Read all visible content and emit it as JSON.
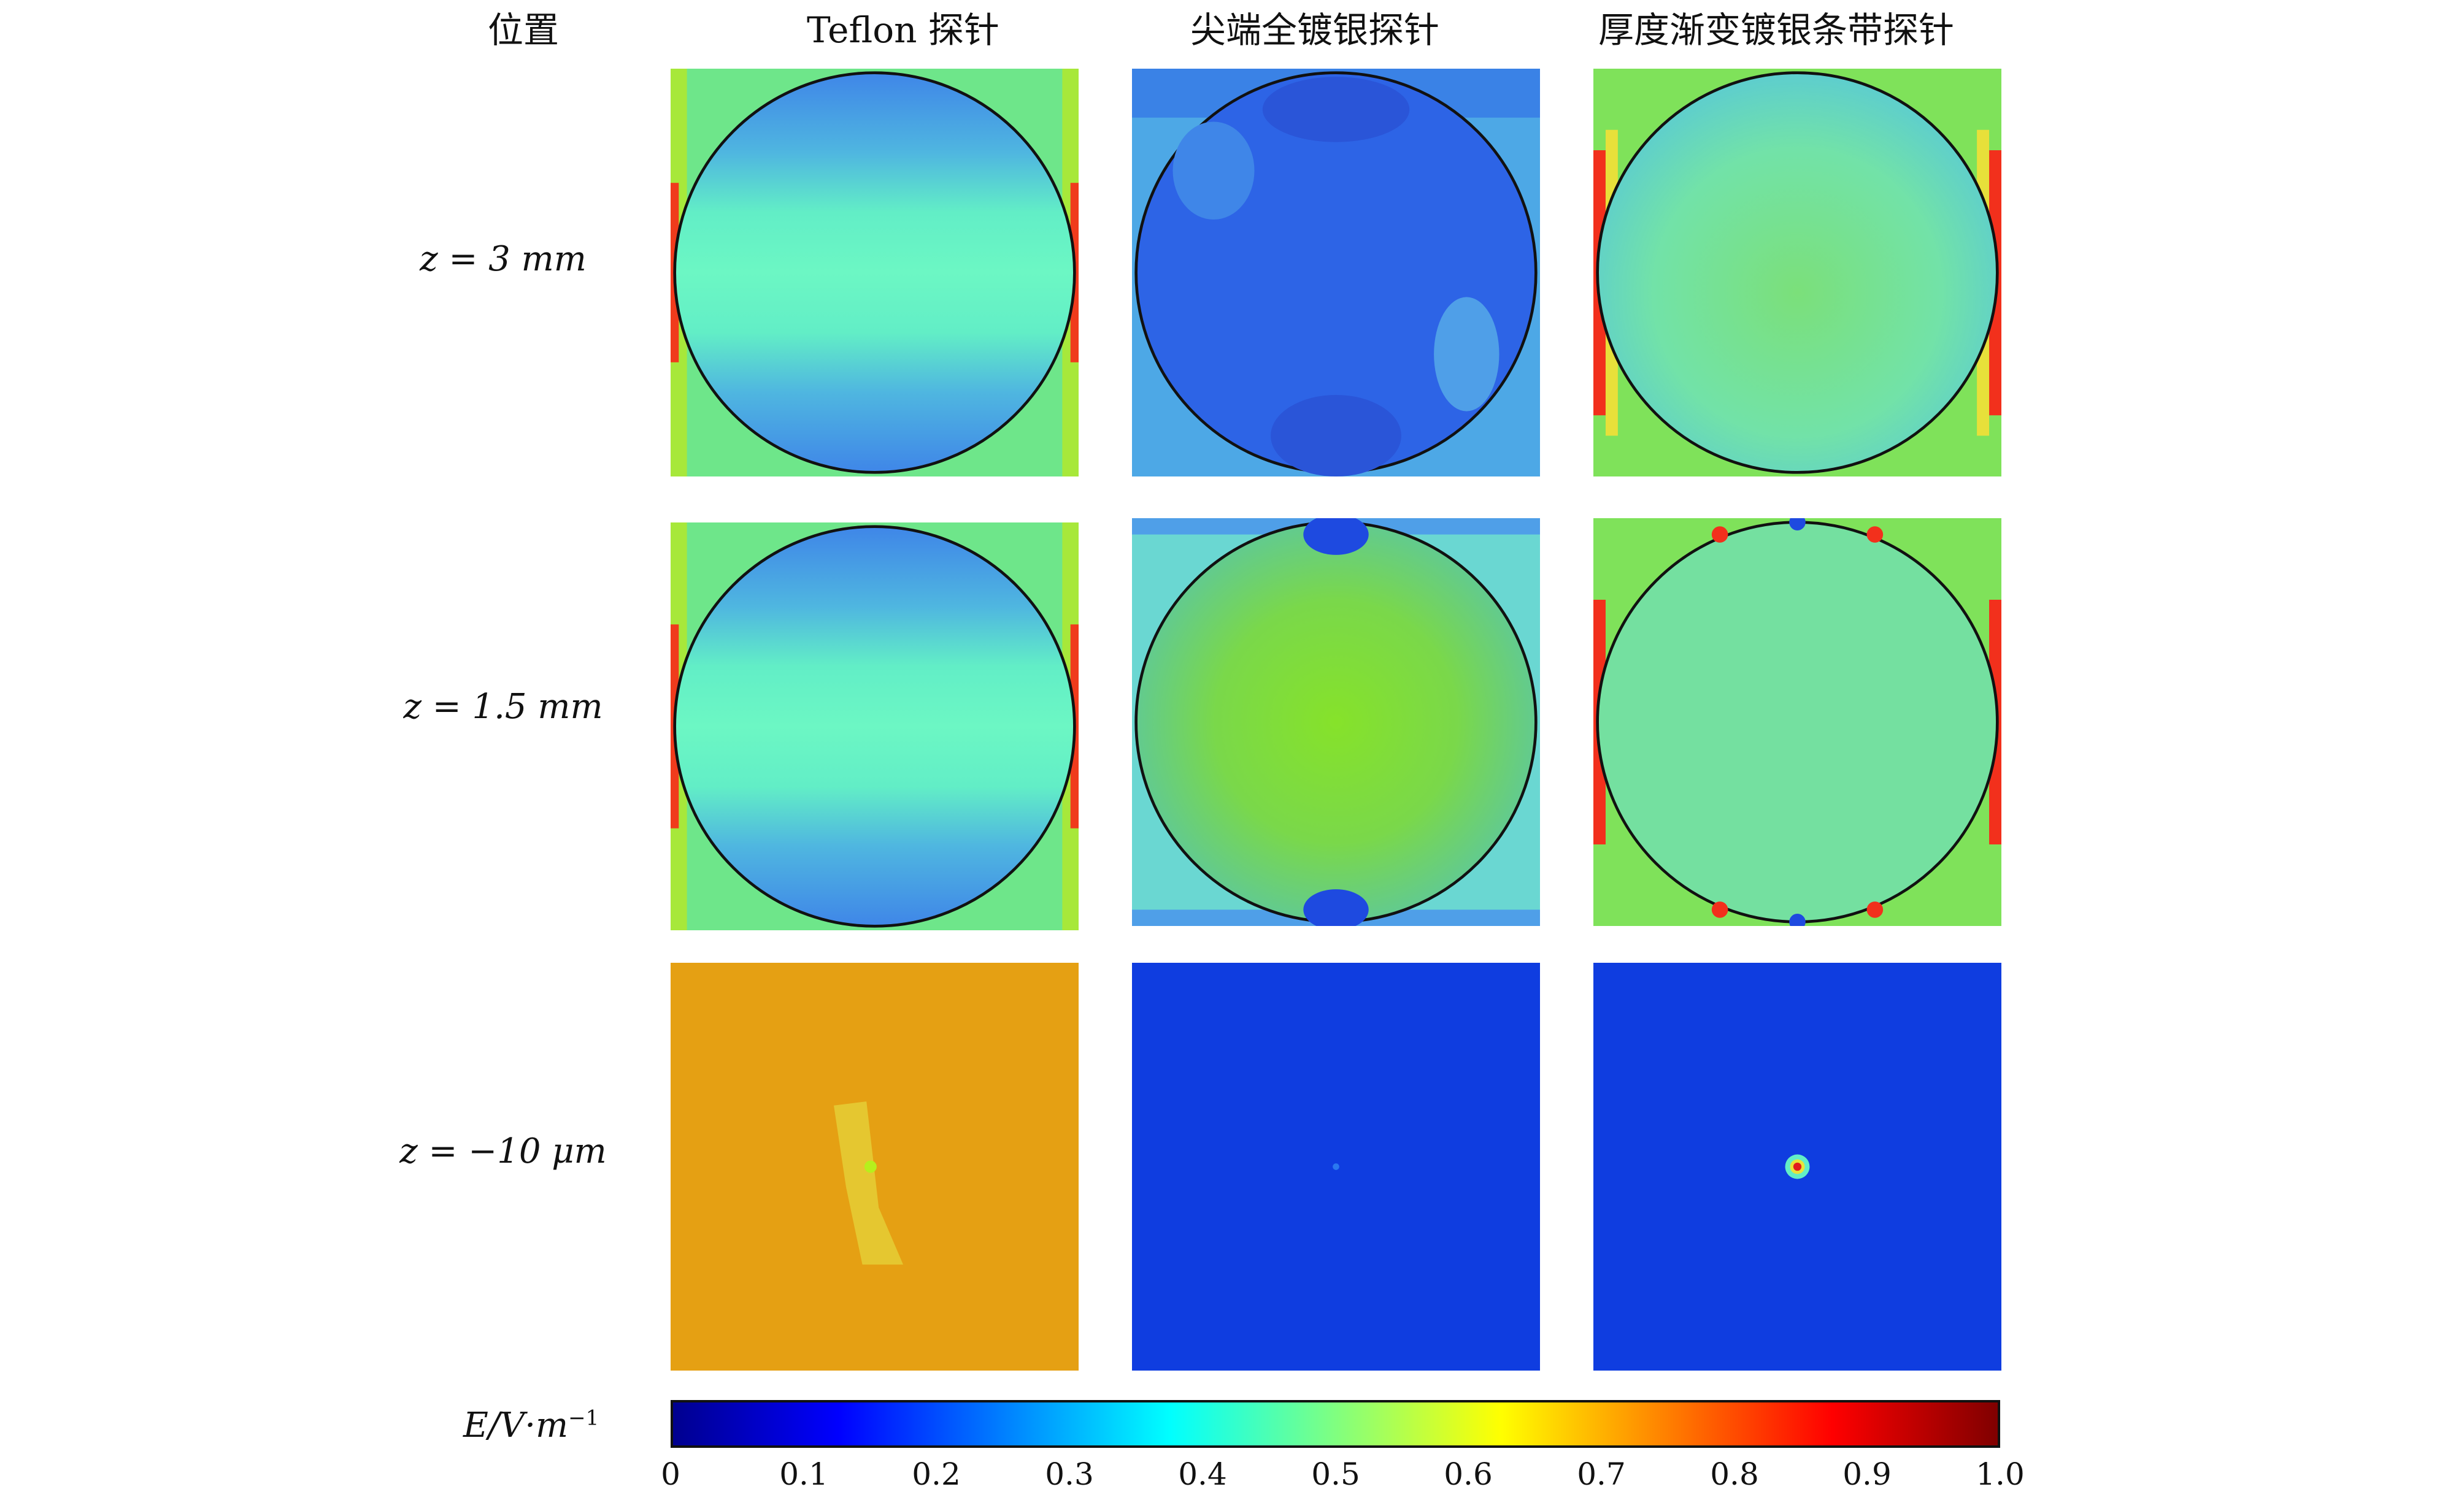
{
  "headers": {
    "position": "位置",
    "col1": "Teflon 探针",
    "col2": "尖端全镀银探针",
    "col3": "厚度渐变镀银条带探针"
  },
  "rows": [
    {
      "label": "z = 3 mm"
    },
    {
      "label": "z = 1.5 mm"
    },
    {
      "label": "z = −10 μm"
    }
  ],
  "colorbar": {
    "label": "E/V·m",
    "label_exponent": "−1",
    "ticks": [
      "0",
      "0.1",
      "0.2",
      "0.3",
      "0.4",
      "0.5",
      "0.6",
      "0.7",
      "0.8",
      "0.9",
      "1.0"
    ],
    "colormap": "jet",
    "range": [
      0,
      1.0
    ]
  },
  "colors": {
    "teflon_bottom_fill": "#e5a013",
    "full_silver_bottom_fill": "#0f3de0",
    "gradient_silver_bottom_fill": "#0f3de0",
    "field_green": "#5ce87a",
    "field_blue": "#3f86e8"
  }
}
